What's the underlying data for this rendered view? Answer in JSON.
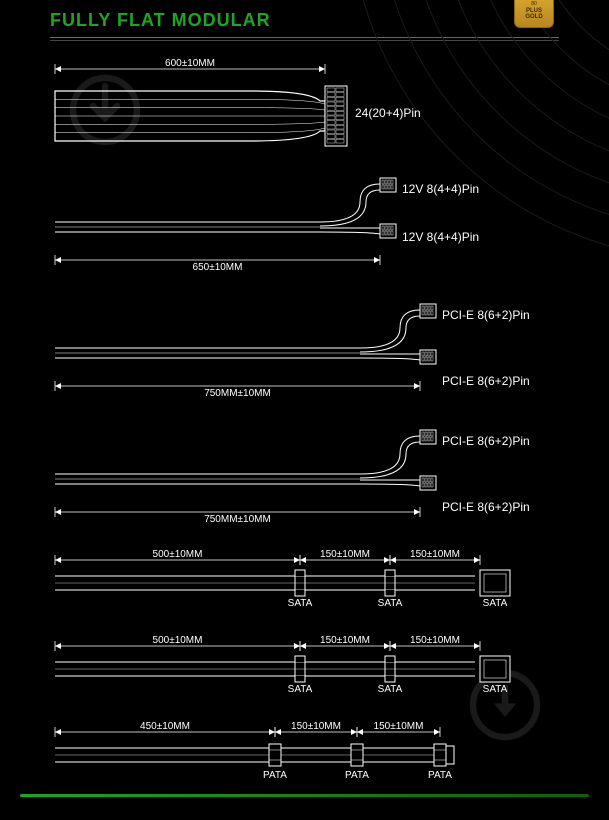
{
  "colors": {
    "bg": "#000000",
    "accent": "#1fa51f",
    "line": "#ffffff",
    "text": "#ffffff",
    "arc": "#1a1a1a",
    "badge_grad_top": "#d4a32e",
    "badge_grad_bot": "#b8861f",
    "watermark": "#777777"
  },
  "title": "FULLY FLAT MODULAR",
  "badge": {
    "line1": "80",
    "line2": "PLUS",
    "line3": "GOLD"
  },
  "cables": [
    {
      "id": "atx24",
      "dims": [
        {
          "label": "600±10MM",
          "span": [
            0,
            270
          ]
        }
      ],
      "connectors": [
        {
          "label": "24(20+4)Pin",
          "y": 45
        }
      ],
      "shape": "single_wide"
    },
    {
      "id": "cpu",
      "dims": [
        {
          "label": "650±10MM",
          "span": [
            0,
            330
          ],
          "below": true
        }
      ],
      "connectors": [
        {
          "label": "12V 8(4+4)Pin",
          "y": 8
        },
        {
          "label": "12V 8(4+4)Pin",
          "y": 56
        }
      ],
      "shape": "split_loop"
    },
    {
      "id": "pcie1",
      "dims": [
        {
          "label": "750MM±10MM",
          "span": [
            0,
            370
          ],
          "below": true
        }
      ],
      "connectors": [
        {
          "label": "PCI-E 8(6+2)Pin",
          "y": 8
        },
        {
          "label": "PCI-E 8(6+2)Pin",
          "y": 74
        }
      ],
      "shape": "split_loop"
    },
    {
      "id": "pcie2",
      "dims": [
        {
          "label": "750MM±10MM",
          "span": [
            0,
            370
          ],
          "below": true
        }
      ],
      "connectors": [
        {
          "label": "PCI-E 8(6+2)Pin",
          "y": 8
        },
        {
          "label": "PCI-E 8(6+2)Pin",
          "y": 74
        }
      ],
      "shape": "split_loop"
    },
    {
      "id": "sata1",
      "dims": [
        {
          "label": "500±10MM",
          "span": [
            0,
            245
          ]
        },
        {
          "label": "150±10MM",
          "span": [
            245,
            335
          ]
        },
        {
          "label": "150±10MM",
          "span": [
            335,
            425
          ]
        }
      ],
      "conn_type": "SATA",
      "stops": [
        245,
        335,
        425
      ],
      "shape": "peripheral"
    },
    {
      "id": "sata2",
      "dims": [
        {
          "label": "500±10MM",
          "span": [
            0,
            245
          ]
        },
        {
          "label": "150±10MM",
          "span": [
            245,
            335
          ]
        },
        {
          "label": "150±10MM",
          "span": [
            335,
            425
          ]
        }
      ],
      "conn_type": "SATA",
      "stops": [
        245,
        335,
        425
      ],
      "shape": "peripheral"
    },
    {
      "id": "pata",
      "dims": [
        {
          "label": "450±10MM",
          "span": [
            0,
            220
          ]
        },
        {
          "label": "150±10MM",
          "span": [
            220,
            302
          ]
        },
        {
          "label": "150±10MM",
          "span": [
            302,
            385
          ]
        }
      ],
      "conn_type": "PATA",
      "stops": [
        220,
        302,
        385
      ],
      "shape": "peripheral_pata"
    }
  ]
}
